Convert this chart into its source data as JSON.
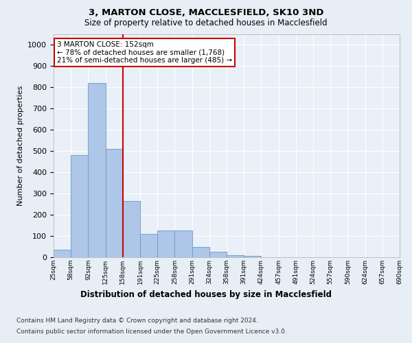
{
  "title1": "3, MARTON CLOSE, MACCLESFIELD, SK10 3ND",
  "title2": "Size of property relative to detached houses in Macclesfield",
  "xlabel": "Distribution of detached houses by size in Macclesfield",
  "ylabel": "Number of detached properties",
  "bar_values": [
    35,
    480,
    820,
    510,
    265,
    110,
    125,
    125,
    50,
    25,
    10,
    5,
    0,
    0,
    0,
    0,
    0,
    0,
    0,
    0
  ],
  "categories": [
    "25sqm",
    "58sqm",
    "92sqm",
    "125sqm",
    "158sqm",
    "191sqm",
    "225sqm",
    "258sqm",
    "291sqm",
    "324sqm",
    "358sqm",
    "391sqm",
    "424sqm",
    "457sqm",
    "491sqm",
    "524sqm",
    "557sqm",
    "590sqm",
    "624sqm",
    "657sqm",
    "690sqm"
  ],
  "bar_color": "#aec6e8",
  "bar_edge_color": "#6699cc",
  "vline_color": "#cc0000",
  "annotation_text": "3 MARTON CLOSE: 152sqm\n← 78% of detached houses are smaller (1,768)\n21% of semi-detached houses are larger (485) →",
  "annotation_box_color": "#ffffff",
  "annotation_box_edge": "#cc0000",
  "ylim": [
    0,
    1050
  ],
  "yticks": [
    0,
    100,
    200,
    300,
    400,
    500,
    600,
    700,
    800,
    900,
    1000
  ],
  "footer1": "Contains HM Land Registry data © Crown copyright and database right 2024.",
  "footer2": "Contains public sector information licensed under the Open Government Licence v3.0.",
  "bg_color": "#e8eef5",
  "plot_bg_color": "#eaf0f7"
}
